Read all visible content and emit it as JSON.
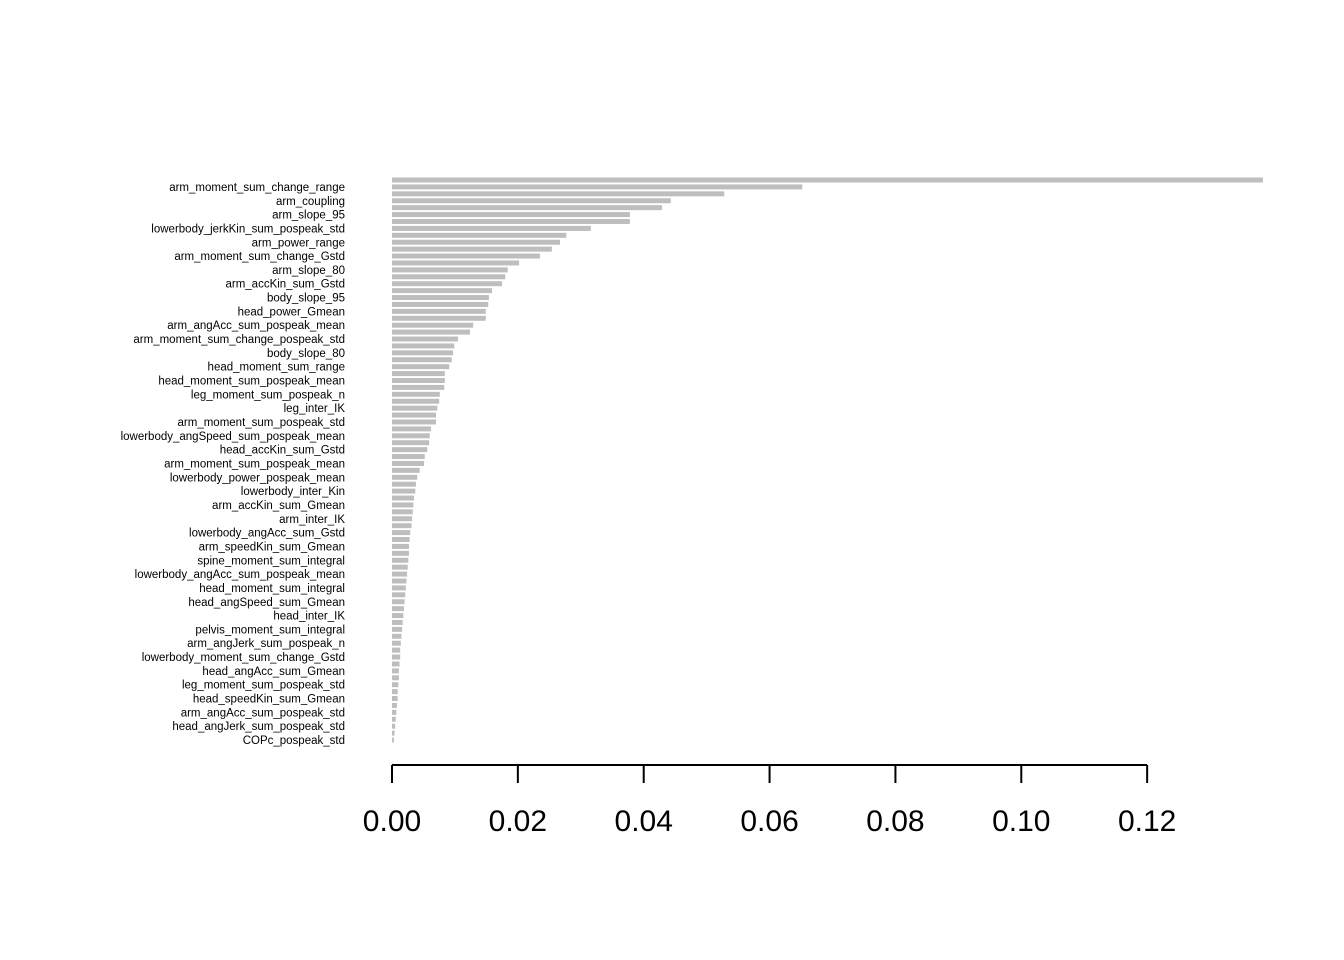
{
  "chart_data": {
    "type": "barh",
    "categories": [
      null,
      "arm_moment_sum_change_range",
      null,
      "arm_coupling",
      null,
      "arm_slope_95",
      null,
      "lowerbody_jerkKin_sum_pospeak_std",
      null,
      "arm_power_range",
      null,
      "arm_moment_sum_change_Gstd",
      null,
      "arm_slope_80",
      null,
      "arm_accKin_sum_Gstd",
      null,
      "body_slope_95",
      null,
      "head_power_Gmean",
      null,
      "arm_angAcc_sum_pospeak_mean",
      null,
      "arm_moment_sum_change_pospeak_std",
      null,
      "body_slope_80",
      null,
      "head_moment_sum_range",
      null,
      "head_moment_sum_pospeak_mean",
      null,
      "leg_moment_sum_pospeak_n",
      null,
      "leg_inter_IK",
      null,
      "arm_moment_sum_pospeak_std",
      null,
      "lowerbody_angSpeed_sum_pospeak_mean",
      null,
      "head_accKin_sum_Gstd",
      null,
      "arm_moment_sum_pospeak_mean",
      null,
      "lowerbody_power_pospeak_mean",
      null,
      "lowerbody_inter_Kin",
      null,
      "arm_accKin_sum_Gmean",
      null,
      "arm_inter_IK",
      null,
      "lowerbody_angAcc_sum_Gstd",
      null,
      "arm_speedKin_sum_Gmean",
      null,
      "spine_moment_sum_integral",
      null,
      "lowerbody_angAcc_sum_pospeak_mean",
      null,
      "head_moment_sum_integral",
      null,
      "head_angSpeed_sum_Gmean",
      null,
      "head_inter_IK",
      null,
      "pelvis_moment_sum_integral",
      null,
      "arm_angJerk_sum_pospeak_n",
      null,
      "lowerbody_moment_sum_change_Gstd",
      null,
      "head_angAcc_sum_Gmean",
      null,
      "leg_moment_sum_pospeak_std",
      null,
      "head_speedKin_sum_Gmean",
      null,
      "arm_angAcc_sum_pospeak_std",
      null,
      "head_angJerk_sum_pospeak_std",
      null,
      "COPc_pospeak_std"
    ],
    "values": [
      0.1384,
      0.0652,
      0.0528,
      0.0443,
      0.0429,
      0.0378,
      0.0378,
      0.0316,
      0.0277,
      0.0267,
      0.0254,
      0.0235,
      0.0202,
      0.0184,
      0.018,
      0.0175,
      0.0159,
      0.0154,
      0.0153,
      0.0149,
      0.0149,
      0.0129,
      0.0124,
      0.0105,
      0.0099,
      0.0097,
      0.0095,
      0.0091,
      0.0084,
      0.0084,
      0.0083,
      0.0076,
      0.0075,
      0.0072,
      0.007,
      0.007,
      0.0062,
      0.006,
      0.0059,
      0.0056,
      0.0052,
      0.0051,
      0.0044,
      0.004,
      0.0038,
      0.0037,
      0.0035,
      0.0034,
      0.0033,
      0.0032,
      0.0031,
      0.0029,
      0.0028,
      0.0027,
      0.0027,
      0.0026,
      0.0025,
      0.0024,
      0.0023,
      0.0022,
      0.0021,
      0.002,
      0.0019,
      0.0018,
      0.0017,
      0.0016,
      0.0015,
      0.0014,
      0.0013,
      0.0013,
      0.0012,
      0.0011,
      0.0011,
      0.001,
      0.0009,
      0.0009,
      0.0008,
      0.0007,
      0.0006,
      0.0005,
      0.0004,
      0.0003
    ],
    "color": "#bebebe",
    "xlim": [
      0,
      0.14
    ],
    "xticks": [
      {
        "value": 0,
        "label": "0.00"
      },
      {
        "value": 0.02,
        "label": "0.02"
      },
      {
        "value": 0.04,
        "label": "0.04"
      },
      {
        "value": 0.06,
        "label": "0.06"
      },
      {
        "value": 0.08,
        "label": "0.08"
      },
      {
        "value": 0.1,
        "label": "0.10"
      },
      {
        "value": 0.12,
        "label": "0.12"
      }
    ],
    "grid": false
  }
}
